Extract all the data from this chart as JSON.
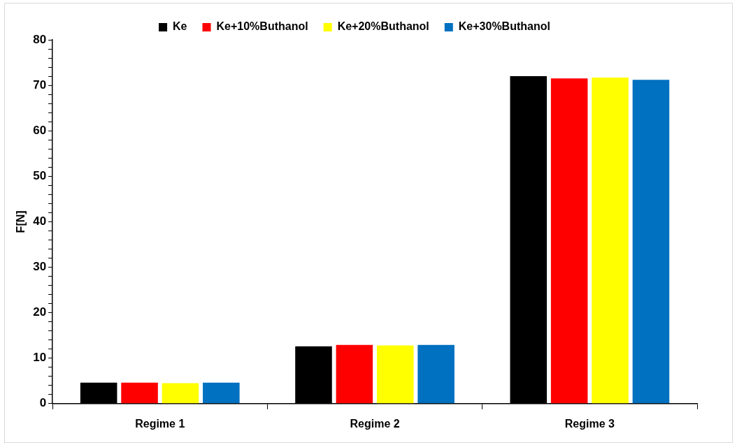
{
  "chart_data": {
    "type": "bar",
    "ylabel": "F[N]",
    "categories": [
      "Regime 1",
      "Regime 2",
      "Regime 3"
    ],
    "series": [
      {
        "name": "Ke",
        "color": "#000000",
        "values": [
          4.6,
          12.6,
          72.0
        ]
      },
      {
        "name": "Ke+10%Buthanol",
        "color": "#ff0000",
        "values": [
          4.6,
          12.9,
          71.5
        ]
      },
      {
        "name": "Ke+20%Buthanol",
        "color": "#ffff00",
        "values": [
          4.5,
          12.8,
          71.7
        ]
      },
      {
        "name": "Ke+30%Buthanol",
        "color": "#0070c0",
        "values": [
          4.6,
          12.9,
          71.2
        ]
      }
    ],
    "ylim": [
      0,
      80
    ],
    "yticks": [
      0,
      {
        "value": 2,
        "label": null
      },
      {
        "value": 4,
        "label": null
      },
      {
        "value": 6,
        "label": null
      },
      {
        "value": 8,
        "label": null
      },
      10,
      {
        "value": 12,
        "label": null
      },
      {
        "value": 14,
        "label": null
      },
      {
        "value": 16,
        "label": null
      },
      {
        "value": 18,
        "label": null
      },
      20,
      {
        "value": 22,
        "label": null
      },
      {
        "value": 24,
        "label": null
      },
      {
        "value": 26,
        "label": null
      },
      {
        "value": 28,
        "label": null
      },
      30,
      {
        "value": 32,
        "label": null
      },
      {
        "value": 34,
        "label": null
      },
      {
        "value": 36,
        "label": null
      },
      {
        "value": 38,
        "label": null
      },
      40,
      {
        "value": 42,
        "label": null
      },
      {
        "value": 44,
        "label": null
      },
      {
        "value": 46,
        "label": null
      },
      {
        "value": 48,
        "label": null
      },
      50,
      {
        "value": 52,
        "label": null
      },
      {
        "value": 54,
        "label": null
      },
      {
        "value": 56,
        "label": null
      },
      {
        "value": 58,
        "label": null
      },
      60,
      {
        "value": 62,
        "label": null
      },
      {
        "value": 64,
        "label": null
      },
      {
        "value": 66,
        "label": null
      },
      {
        "value": 68,
        "label": null
      },
      70,
      {
        "value": 72,
        "label": null
      },
      {
        "value": 74,
        "label": null
      },
      {
        "value": 76,
        "label": null
      },
      {
        "value": 78,
        "label": null
      },
      80
    ],
    "grid": false,
    "legend": "top"
  }
}
